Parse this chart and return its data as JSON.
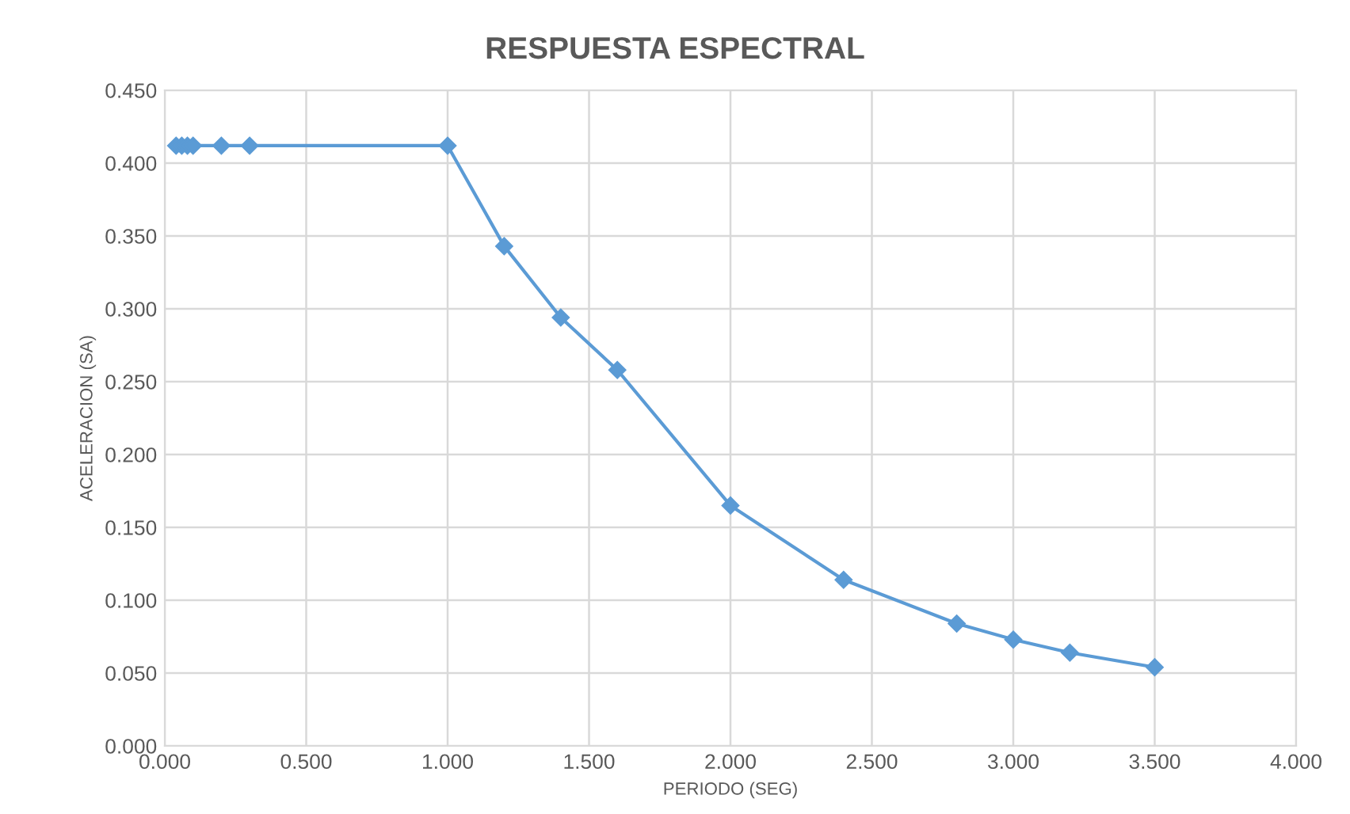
{
  "chart_data": {
    "type": "line",
    "title": "RESPUESTA ESPECTRAL",
    "xlabel": "PERIODO (SEG)",
    "ylabel": "ACELERACION (SA)",
    "series": [
      {
        "color": "#5b9bd5",
        "x": [
          0.04,
          0.06,
          0.08,
          0.1,
          0.2,
          0.3,
          1.0,
          1.2,
          1.4,
          1.6,
          2.0,
          2.4,
          2.8,
          3.0,
          3.2,
          3.5
        ],
        "values": [
          0.412,
          0.412,
          0.412,
          0.412,
          0.412,
          0.412,
          0.412,
          0.343,
          0.294,
          0.258,
          0.165,
          0.114,
          0.084,
          0.073,
          0.064,
          0.054
        ]
      }
    ],
    "marker": "diamond",
    "line_style": "solid",
    "grid": true,
    "xlim": [
      0,
      4
    ],
    "xticks": [
      {
        "value": 0,
        "label": "0.000"
      },
      {
        "value": 0.5,
        "label": "0.500"
      },
      {
        "value": 1,
        "label": "1.000"
      },
      {
        "value": 1.5,
        "label": "1.500"
      },
      {
        "value": 2,
        "label": "2.000"
      },
      {
        "value": 2.5,
        "label": "2.500"
      },
      {
        "value": 3,
        "label": "3.000"
      },
      {
        "value": 3.5,
        "label": "3.500"
      },
      {
        "value": 4,
        "label": "4.000"
      }
    ],
    "ylim": [
      0,
      0.45
    ],
    "yticks": [
      {
        "value": 0,
        "label": "0.000"
      },
      {
        "value": 0.05,
        "label": "0.050"
      },
      {
        "value": 0.1,
        "label": "0.100"
      },
      {
        "value": 0.15,
        "label": "0.150"
      },
      {
        "value": 0.2,
        "label": "0.200"
      },
      {
        "value": 0.25,
        "label": "0.250"
      },
      {
        "value": 0.3,
        "label": "0.300"
      },
      {
        "value": 0.35,
        "label": "0.350"
      },
      {
        "value": 0.4,
        "label": "0.400"
      },
      {
        "value": 0.45,
        "label": "0.450"
      }
    ]
  }
}
